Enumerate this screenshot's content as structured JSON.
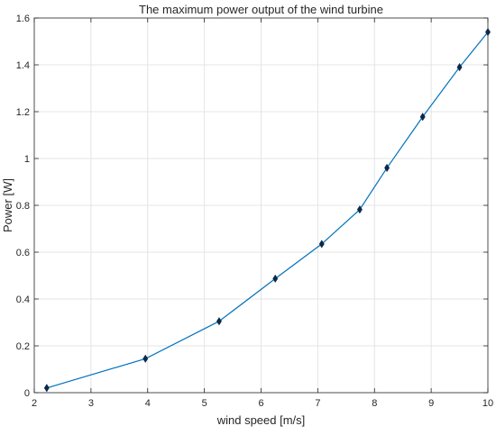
{
  "chart_data": {
    "type": "line",
    "title": "The maximum power output of the wind turbine",
    "xlabel": "wind speed [m/s]",
    "ylabel": "Power [W]",
    "xlim": [
      2,
      10
    ],
    "ylim": [
      0,
      1.6
    ],
    "xticks": [
      "2",
      "3",
      "4",
      "5",
      "6",
      "7",
      "8",
      "9",
      "10"
    ],
    "yticks": [
      "0",
      "0.2",
      "0.4",
      "0.6",
      "0.8",
      "1",
      "1.2",
      "1.4",
      "1.6"
    ],
    "grid": true,
    "series": [
      {
        "color": "#0072BD",
        "marker_color": "#0B2A4A",
        "x": [
          2.22,
          3.96,
          5.26,
          6.25,
          7.07,
          7.74,
          8.22,
          8.85,
          9.5,
          10.0
        ],
        "y": [
          0.02,
          0.145,
          0.305,
          0.487,
          0.635,
          0.782,
          0.96,
          1.178,
          1.39,
          1.54
        ]
      }
    ]
  }
}
